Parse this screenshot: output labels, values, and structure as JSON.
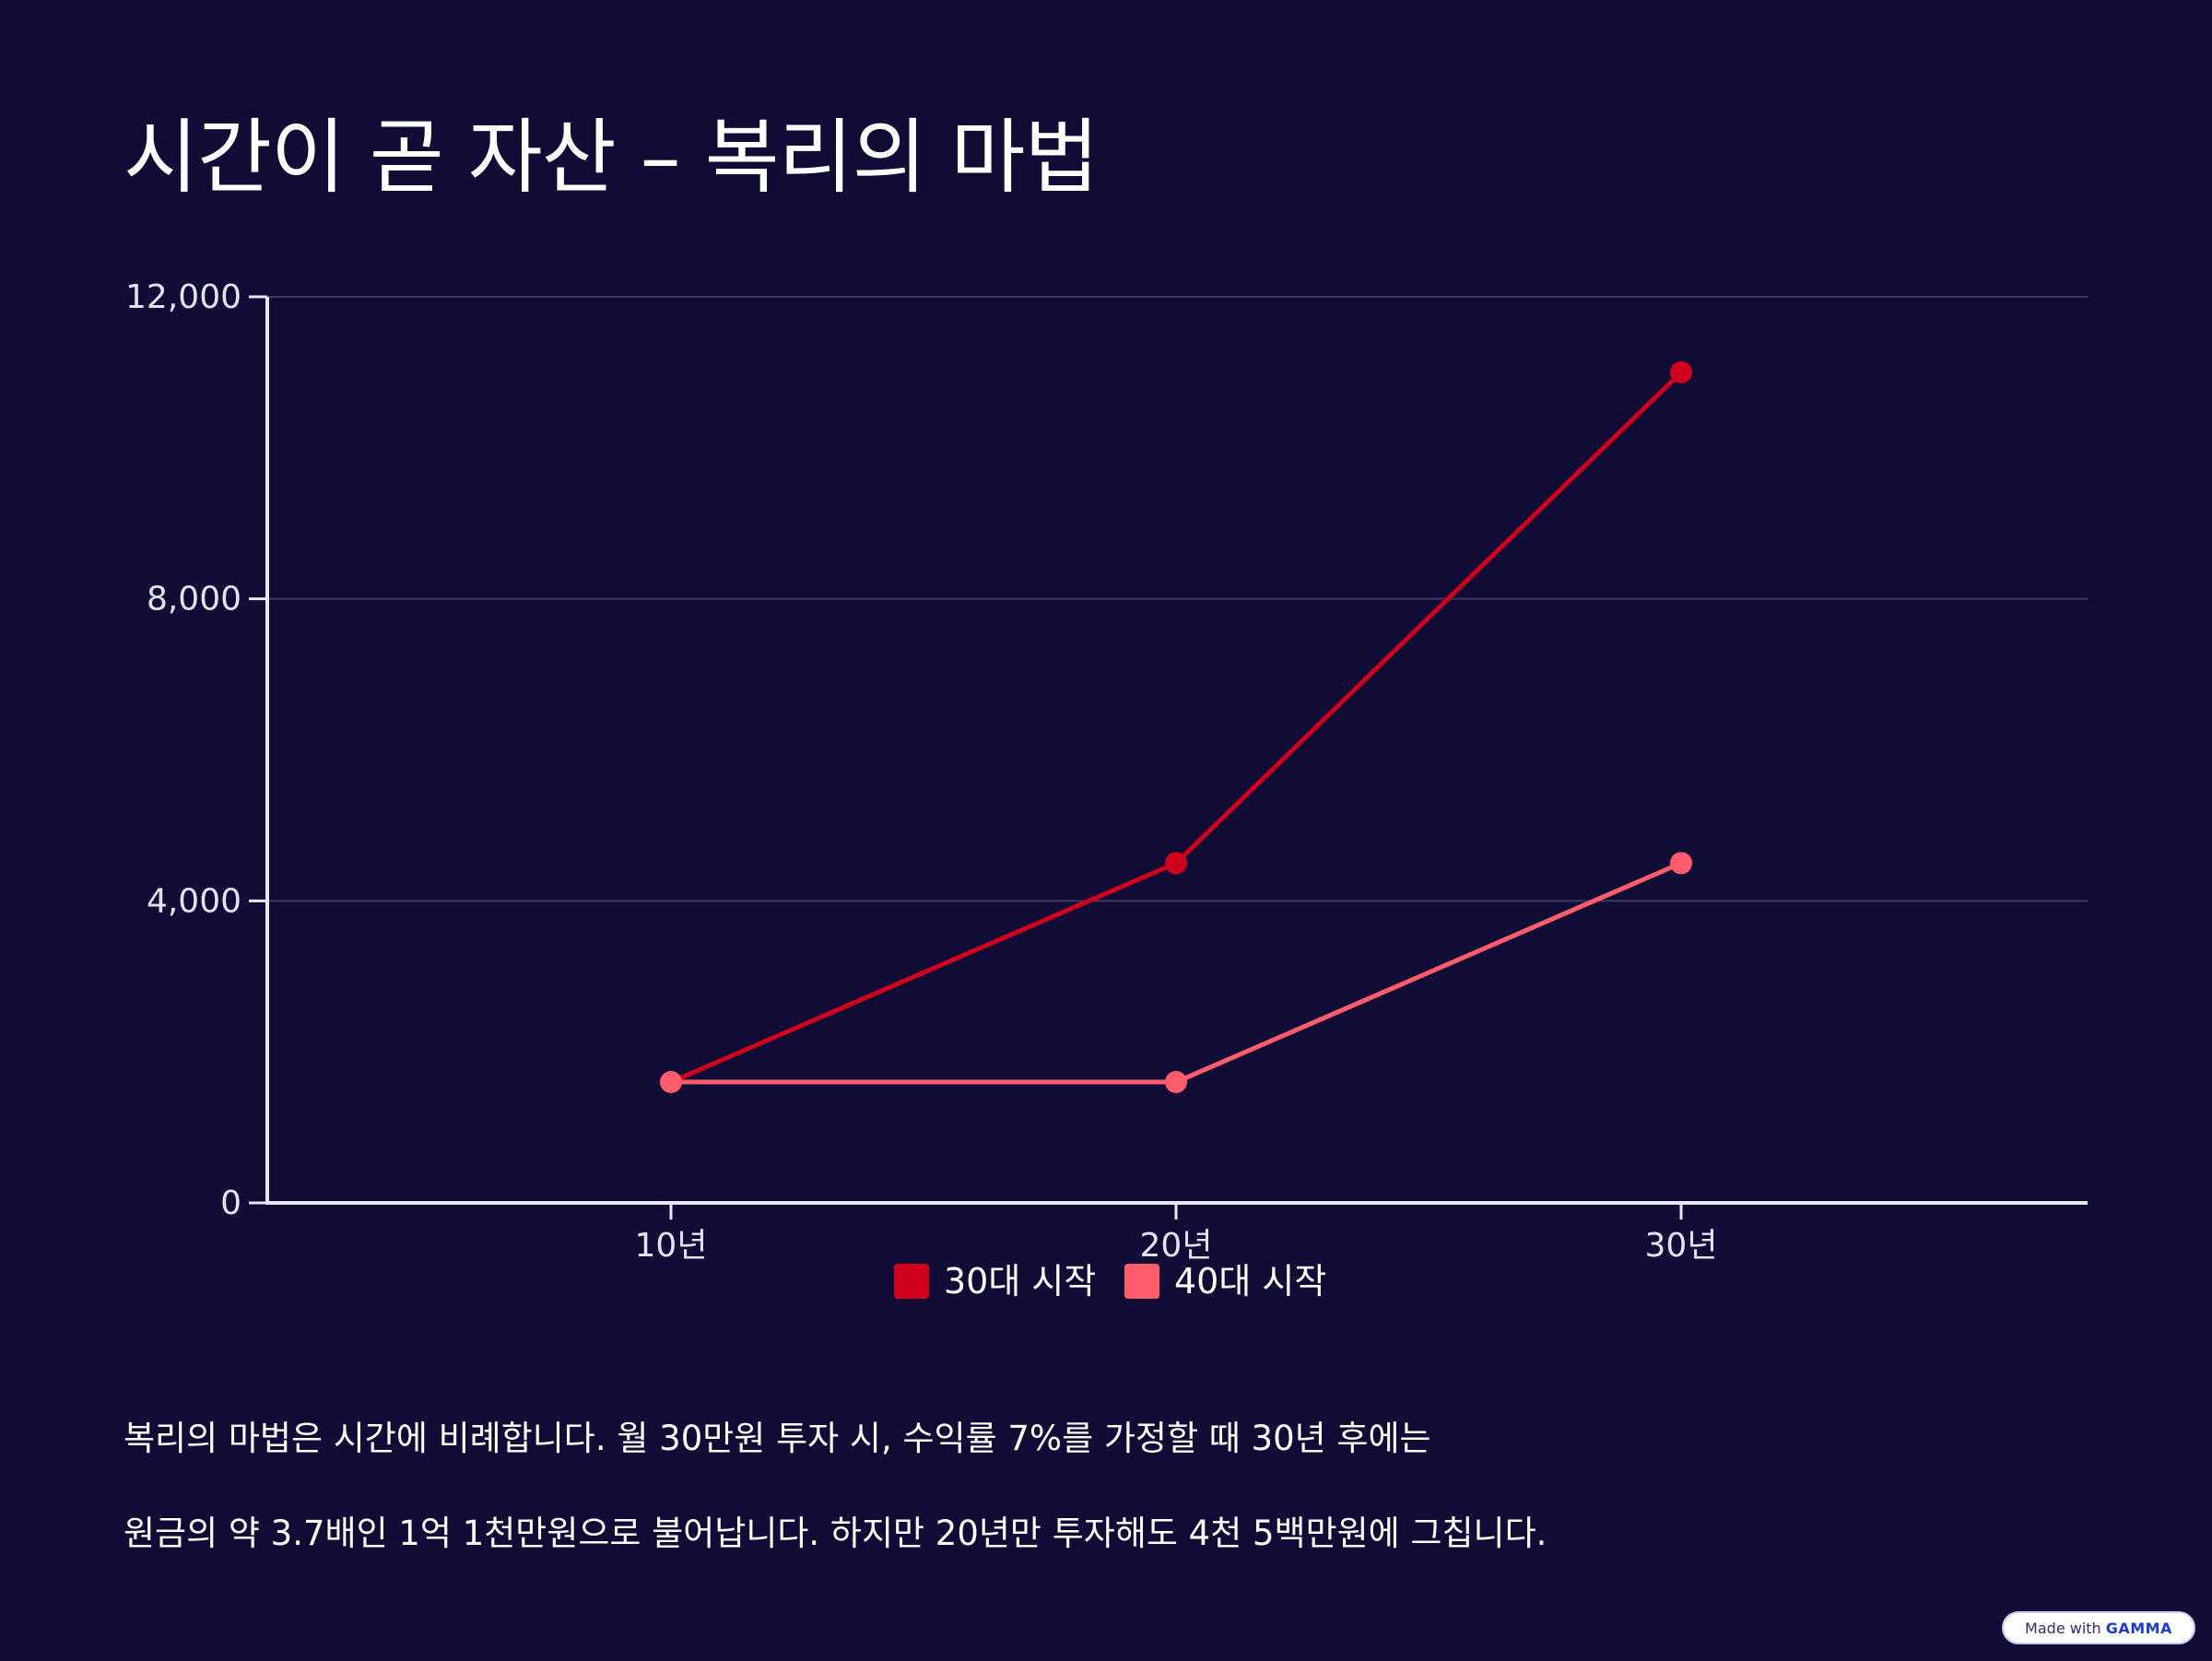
{
  "title": "시간이 곧 자산 – 복리의 마법",
  "chart_data": {
    "type": "line",
    "categories": [
      "10년",
      "20년",
      "30년"
    ],
    "series": [
      {
        "name": "30대 시작",
        "values": [
          1600,
          4500,
          11000
        ],
        "color": "#d0021b"
      },
      {
        "name": "40대 시작",
        "values": [
          1600,
          1600,
          4500
        ],
        "color": "#ff5c6c"
      }
    ],
    "y_ticks": [
      0,
      4000,
      8000,
      12000
    ],
    "y_tick_labels": [
      "0",
      "4,000",
      "8,000",
      "12,000"
    ],
    "ylim": [
      0,
      12000
    ],
    "grid": true,
    "legend_position": "bottom"
  },
  "description": {
    "line1": "복리의 마법은 시간에 비례합니다. 월 30만원 투자 시, 수익률 7%를 가정할 때 30년 후에는",
    "line2": "원금의 약 3.7배인 1억 1천만원으로 불어납니다. 하지만 20년만 투자해도 4천 5백만원에 그칩니다."
  },
  "badge": {
    "prefix": "Made with",
    "brand": "GAMMA"
  },
  "colors": {
    "background": "#110c36",
    "axis": "#e8e6f5",
    "grid": "#3e3a63"
  }
}
